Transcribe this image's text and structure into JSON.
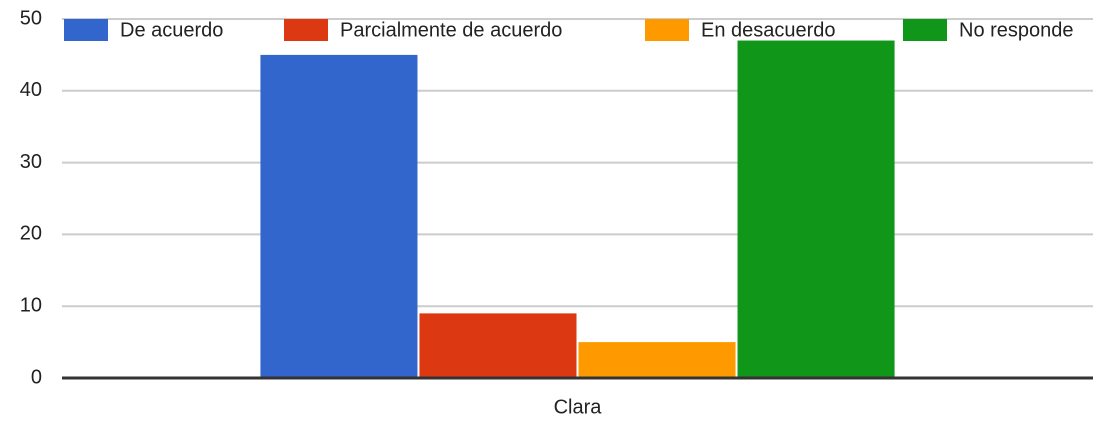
{
  "chart_data": {
    "type": "bar",
    "categories": [
      "Clara"
    ],
    "series": [
      {
        "name": "De acuerdo",
        "color": "#3366cc",
        "values": [
          45
        ]
      },
      {
        "name": "Parcialmente de acuerdo",
        "color": "#dc3912",
        "values": [
          9
        ]
      },
      {
        "name": "En desacuerdo",
        "color": "#ff9900",
        "values": [
          5
        ]
      },
      {
        "name": "No responde",
        "color": "#109618",
        "values": [
          47
        ]
      }
    ],
    "ylim": [
      0,
      50
    ],
    "yticks": [
      0,
      10,
      20,
      30,
      40,
      50
    ],
    "grid": true,
    "legend": "top"
  }
}
